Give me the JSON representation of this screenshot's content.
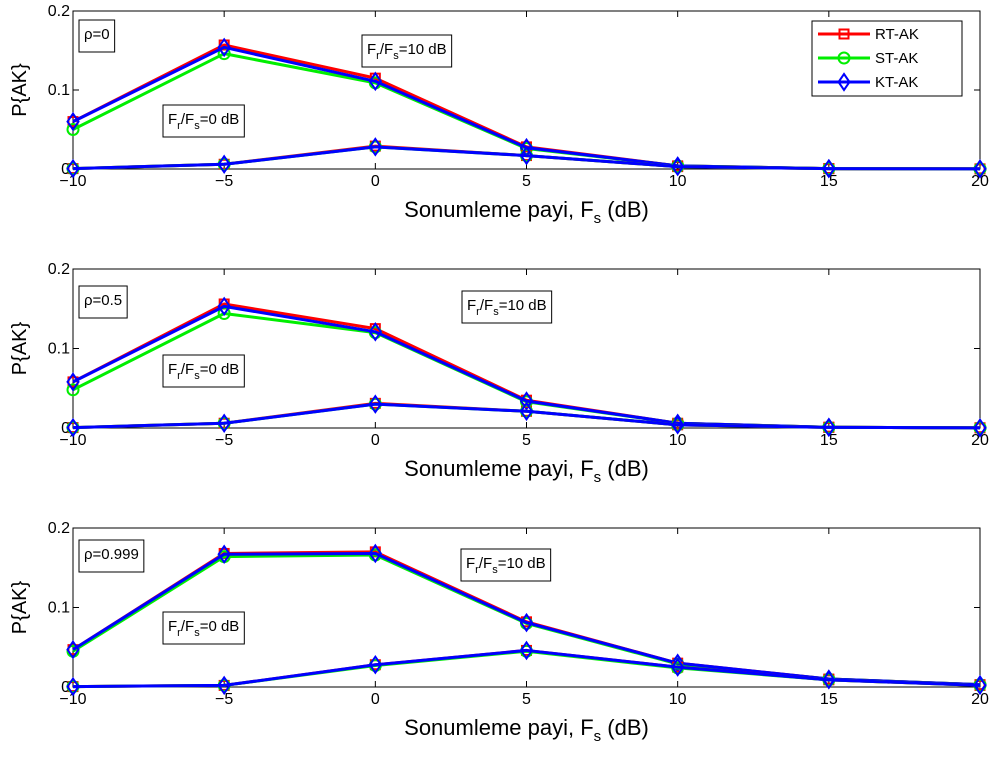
{
  "chart_data": [
    {
      "type": "line",
      "xlabel": "Sonumleme payi, F",
      "xlabel_sub": "s",
      "xlabel_unit": "(dB)",
      "ylabel": "P{AK}",
      "x": [
        -10,
        -5,
        0,
        5,
        10,
        15,
        20
      ],
      "xlim": [
        -10,
        20
      ],
      "ylim": [
        0,
        0.2
      ],
      "xticks": [
        "-10",
        "-5",
        "0",
        "5",
        "10",
        "15",
        "20"
      ],
      "yticks": [
        "0",
        "0.1",
        "0.2"
      ],
      "rho_label": "ρ=0",
      "ann_high": {
        "pre": "F",
        "sub1": "r",
        "mid": "/F",
        "sub2": "s",
        "post": "=10 dB"
      },
      "ann_low": {
        "pre": "F",
        "sub1": "r",
        "mid": "/F",
        "sub2": "s",
        "post": "=0 dB"
      },
      "legend": {
        "show": true,
        "placement": "top-right"
      },
      "series": [
        {
          "name": "RT-AK",
          "color": "#ff0000",
          "marker": "square",
          "ratio": "10 dB",
          "values": [
            0.06,
            0.157,
            0.115,
            0.028,
            0.004,
            0.0005,
            0.0001
          ]
        },
        {
          "name": "ST-AK",
          "color": "#00ee00",
          "marker": "circle",
          "ratio": "10 dB",
          "values": [
            0.05,
            0.146,
            0.109,
            0.026,
            0.004,
            0.0005,
            0.0001
          ]
        },
        {
          "name": "KT-AK",
          "color": "#0000ff",
          "marker": "diamond",
          "ratio": "10 dB",
          "values": [
            0.06,
            0.154,
            0.111,
            0.027,
            0.004,
            0.0005,
            0.0001
          ]
        },
        {
          "name": "RT-AK",
          "color": "#ff0000",
          "marker": "square",
          "ratio": "0 dB",
          "values": [
            0.0005,
            0.006,
            0.029,
            0.017,
            0.003,
            0.0005,
            0.0001
          ]
        },
        {
          "name": "ST-AK",
          "color": "#00ee00",
          "marker": "circle",
          "ratio": "0 dB",
          "values": [
            0.0005,
            0.006,
            0.028,
            0.017,
            0.003,
            0.0005,
            0.0001
          ]
        },
        {
          "name": "KT-AK",
          "color": "#0000ff",
          "marker": "diamond",
          "ratio": "0 dB",
          "values": [
            0.0005,
            0.006,
            0.028,
            0.017,
            0.003,
            0.0005,
            0.0001
          ]
        }
      ]
    },
    {
      "type": "line",
      "xlabel": "Sonumleme payi, F",
      "xlabel_sub": "s",
      "xlabel_unit": "(dB)",
      "ylabel": "P{AK}",
      "x": [
        -10,
        -5,
        0,
        5,
        10,
        15,
        20
      ],
      "xlim": [
        -10,
        20
      ],
      "ylim": [
        0,
        0.2
      ],
      "xticks": [
        "-10",
        "-5",
        "0",
        "5",
        "10",
        "15",
        "20"
      ],
      "yticks": [
        "0",
        "0.1",
        "0.2"
      ],
      "rho_label": "ρ=0.5",
      "ann_high": {
        "pre": "F",
        "sub1": "r",
        "mid": "/F",
        "sub2": "s",
        "post": "=10 dB"
      },
      "ann_low": {
        "pre": "F",
        "sub1": "r",
        "mid": "/F",
        "sub2": "s",
        "post": "=0 dB"
      },
      "legend": {
        "show": false
      },
      "series": [
        {
          "name": "RT-AK",
          "color": "#ff0000",
          "marker": "square",
          "ratio": "10 dB",
          "values": [
            0.058,
            0.156,
            0.125,
            0.035,
            0.006,
            0.001,
            0.0002
          ]
        },
        {
          "name": "ST-AK",
          "color": "#00ee00",
          "marker": "circle",
          "ratio": "10 dB",
          "values": [
            0.048,
            0.144,
            0.12,
            0.033,
            0.006,
            0.001,
            0.0002
          ]
        },
        {
          "name": "KT-AK",
          "color": "#0000ff",
          "marker": "diamond",
          "ratio": "10 dB",
          "values": [
            0.058,
            0.153,
            0.121,
            0.034,
            0.006,
            0.001,
            0.0002
          ]
        },
        {
          "name": "RT-AK",
          "color": "#ff0000",
          "marker": "square",
          "ratio": "0 dB",
          "values": [
            0.0005,
            0.006,
            0.031,
            0.021,
            0.004,
            0.0008,
            0.0002
          ]
        },
        {
          "name": "ST-AK",
          "color": "#00ee00",
          "marker": "circle",
          "ratio": "0 dB",
          "values": [
            0.0005,
            0.006,
            0.03,
            0.021,
            0.004,
            0.0008,
            0.0002
          ]
        },
        {
          "name": "KT-AK",
          "color": "#0000ff",
          "marker": "diamond",
          "ratio": "0 dB",
          "values": [
            0.0005,
            0.006,
            0.03,
            0.021,
            0.004,
            0.0008,
            0.0002
          ]
        }
      ]
    },
    {
      "type": "line",
      "xlabel": "Sonumleme payi, F",
      "xlabel_sub": "s",
      "xlabel_unit": "(dB)",
      "ylabel": "P{AK}",
      "x": [
        -10,
        -5,
        0,
        5,
        10,
        15,
        20
      ],
      "xlim": [
        -10,
        20
      ],
      "ylim": [
        0,
        0.2
      ],
      "xticks": [
        "-10",
        "-5",
        "0",
        "5",
        "10",
        "15",
        "20"
      ],
      "yticks": [
        "0",
        "0.1",
        "0.2"
      ],
      "rho_label": "ρ=0.999",
      "ann_high": {
        "pre": "F",
        "sub1": "r",
        "mid": "/F",
        "sub2": "s",
        "post": "=10 dB"
      },
      "ann_low": {
        "pre": "F",
        "sub1": "r",
        "mid": "/F",
        "sub2": "s",
        "post": "=0 dB"
      },
      "legend": {
        "show": false
      },
      "series": [
        {
          "name": "RT-AK",
          "color": "#ff0000",
          "marker": "square",
          "ratio": "10 dB",
          "values": [
            0.047,
            0.168,
            0.17,
            0.082,
            0.03,
            0.01,
            0.003
          ]
        },
        {
          "name": "ST-AK",
          "color": "#00ee00",
          "marker": "circle",
          "ratio": "10 dB",
          "values": [
            0.045,
            0.164,
            0.166,
            0.08,
            0.029,
            0.01,
            0.003
          ]
        },
        {
          "name": "KT-AK",
          "color": "#0000ff",
          "marker": "diamond",
          "ratio": "10 dB",
          "values": [
            0.047,
            0.167,
            0.168,
            0.081,
            0.03,
            0.01,
            0.003
          ]
        },
        {
          "name": "RT-AK",
          "color": "#ff0000",
          "marker": "square",
          "ratio": "0 dB",
          "values": [
            0.0005,
            0.002,
            0.028,
            0.046,
            0.025,
            0.009,
            0.002
          ]
        },
        {
          "name": "ST-AK",
          "color": "#00ee00",
          "marker": "circle",
          "ratio": "0 dB",
          "values": [
            0.0005,
            0.002,
            0.027,
            0.045,
            0.024,
            0.009,
            0.002
          ]
        },
        {
          "name": "KT-AK",
          "color": "#0000ff",
          "marker": "diamond",
          "ratio": "0 dB",
          "values": [
            0.0005,
            0.002,
            0.028,
            0.046,
            0.025,
            0.009,
            0.002
          ]
        }
      ]
    }
  ]
}
